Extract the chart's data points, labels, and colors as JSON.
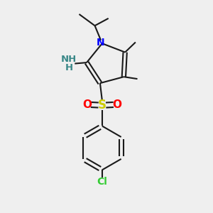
{
  "bg_color": "#efefef",
  "bond_color": "#1a1a1a",
  "N_color": "#0000ff",
  "O_color": "#ff0000",
  "S_color": "#cccc00",
  "Cl_color": "#33cc33",
  "NH2_color": "#3a8888",
  "figsize": [
    3.0,
    3.0
  ],
  "dpi": 100,
  "xlim": [
    0,
    10
  ],
  "ylim": [
    0,
    10
  ]
}
